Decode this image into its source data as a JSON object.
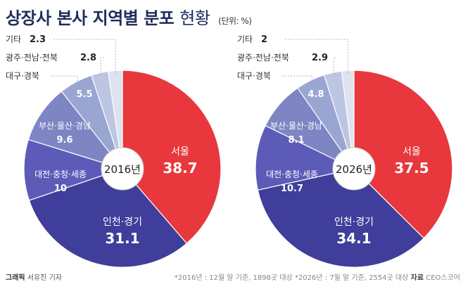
{
  "title": {
    "main": "상장사 본사 지역별 분포",
    "sub": "현황",
    "unit": "(단위: %)"
  },
  "chart_data": [
    {
      "type": "pie",
      "center_label": "2016년",
      "slices": [
        {
          "label": "서울",
          "value": 38.7,
          "color": "#e8383d",
          "text_color": "#ffffff"
        },
        {
          "label": "인천·경기",
          "value": 31.1,
          "color": "#3f3e9a",
          "text_color": "#ffffff"
        },
        {
          "label": "대전·충청·세종",
          "value": 10,
          "color": "#5d5bb8",
          "text_color": "#ffffff"
        },
        {
          "label": "부산·울산·경남",
          "value": 9.6,
          "color": "#7d86c3",
          "text_color": "#ffffff"
        },
        {
          "label": "대구·경북",
          "value": 5.5,
          "color": "#9aa6d2",
          "text_color": "#ffffff"
        },
        {
          "label": "광주·전남·전북",
          "value": 2.8,
          "color": "#bcc6e3",
          "text_color": "#333333"
        },
        {
          "label": "기타",
          "value": 2.3,
          "color": "#dfe3ef",
          "text_color": "#333333"
        }
      ]
    },
    {
      "type": "pie",
      "center_label": "2026년",
      "slices": [
        {
          "label": "서울",
          "value": 37.5,
          "color": "#e8383d",
          "text_color": "#ffffff"
        },
        {
          "label": "인천·경기",
          "value": 34.1,
          "color": "#3f3e9a",
          "text_color": "#ffffff"
        },
        {
          "label": "대전·충청·세종",
          "value": 10.7,
          "color": "#5d5bb8",
          "text_color": "#ffffff"
        },
        {
          "label": "부산·울산·경남",
          "value": 8.1,
          "color": "#7d86c3",
          "text_color": "#ffffff"
        },
        {
          "label": "대구·경북",
          "value": 4.8,
          "color": "#9aa6d2",
          "text_color": "#ffffff"
        },
        {
          "label": "광주·전남·전북",
          "value": 2.9,
          "color": "#bcc6e3",
          "text_color": "#333333"
        },
        {
          "label": "기타",
          "value": 2.0,
          "color": "#dfe3ef",
          "text_color": "#333333"
        }
      ]
    }
  ],
  "footer": {
    "credit_label": "그래픽",
    "credit_name": "서유진 기자",
    "note_prefix": "*2016년 : 12월 말 기준, 1898곳 대상 *2026년 : 7월 말 기준, 2554곳 대상",
    "source_label": "자료",
    "source": "CEO스코어"
  }
}
